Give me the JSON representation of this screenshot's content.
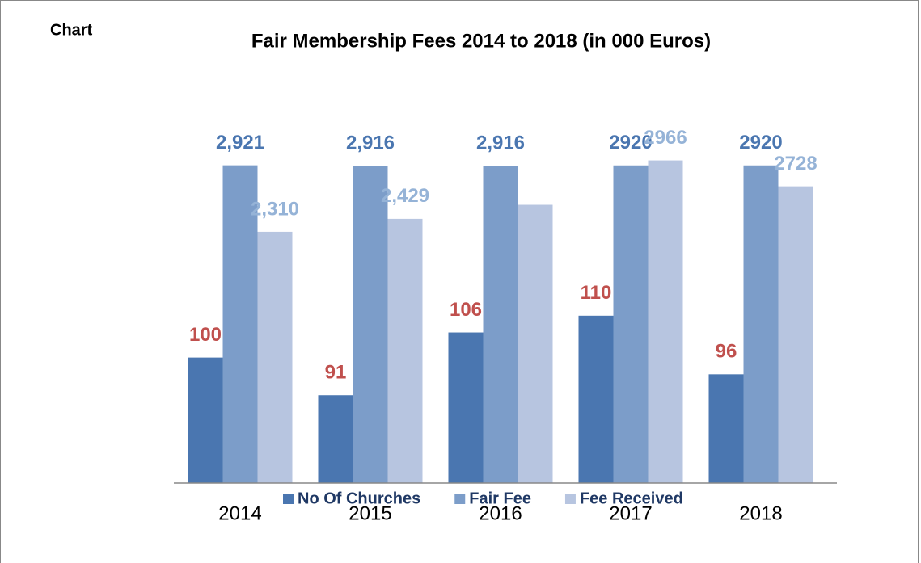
{
  "chart_data": {
    "type": "bar",
    "label": "Chart",
    "title": "Fair Membership Fees 2014 to 2018 (in 000 Euros)",
    "categories": [
      "2014",
      "2015",
      "2016",
      "2017",
      "2018"
    ],
    "series": [
      {
        "name": "No Of Churches",
        "color": "#4a76b0",
        "label_color": "#c0504d",
        "axis": "y2",
        "values": [
          100,
          91,
          106,
          110,
          96
        ]
      },
      {
        "name": "Fair Fee",
        "color": "#7c9dc9",
        "label_color": "#4a76b0",
        "values": [
          2921,
          2916,
          2916,
          2920,
          2920
        ],
        "value_labels": [
          "2,921",
          "2,916",
          "2,916",
          "2920",
          "2920"
        ]
      },
      {
        "name": "Fee Received",
        "color": "#b7c5e0",
        "label_color": "#95b3d7",
        "values": [
          2310,
          2429,
          2558,
          2966,
          2728
        ],
        "value_labels": [
          "2,310",
          "2,429",
          null,
          "2966",
          "2728"
        ]
      }
    ],
    "ylim": [
      0,
      3000
    ],
    "y2lim": [
      70,
      148
    ],
    "legend": "bottom"
  }
}
